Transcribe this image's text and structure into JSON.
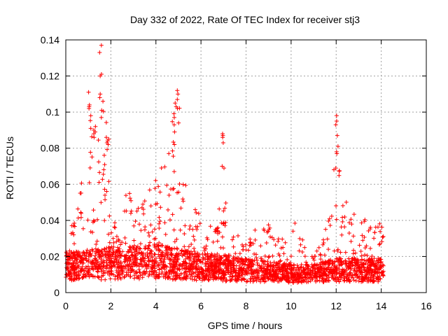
{
  "chart_data": {
    "type": "scatter",
    "title": "Day 332 of 2022, Rate Of TEC Index for receiver stj3",
    "xlabel": "GPS time / hours",
    "ylabel": "ROTI / TECUs",
    "xlim": [
      0,
      16
    ],
    "ylim": [
      0,
      0.14
    ],
    "xticks": [
      0,
      2,
      4,
      6,
      8,
      10,
      12,
      14,
      16
    ],
    "xtick_labels": [
      "0",
      "2",
      "4",
      "6",
      "8",
      "10",
      "12",
      "14",
      "16"
    ],
    "yticks": [
      0,
      0.02,
      0.04,
      0.06,
      0.08,
      0.1,
      0.12,
      0.14
    ],
    "ytick_labels": [
      "0",
      "0.02",
      "0.04",
      "0.06",
      "0.08",
      "0.1",
      "0.12",
      "0.14"
    ],
    "grid": true,
    "marker": "+",
    "color": "#ff0000",
    "data_range_hours": [
      0,
      14.1
    ],
    "envelope": [
      [
        0.0,
        0.032
      ],
      [
        0.3,
        0.038
      ],
      [
        0.6,
        0.06
      ],
      [
        0.9,
        0.07
      ],
      [
        1.1,
        0.111
      ],
      [
        1.3,
        0.095
      ],
      [
        1.5,
        0.137
      ],
      [
        1.7,
        0.11
      ],
      [
        1.9,
        0.086
      ],
      [
        2.1,
        0.05
      ],
      [
        2.4,
        0.04
      ],
      [
        2.8,
        0.063
      ],
      [
        3.2,
        0.048
      ],
      [
        3.5,
        0.052
      ],
      [
        3.8,
        0.06
      ],
      [
        4.2,
        0.072
      ],
      [
        4.6,
        0.08
      ],
      [
        4.8,
        0.105
      ],
      [
        5.0,
        0.112
      ],
      [
        5.3,
        0.065
      ],
      [
        5.7,
        0.052
      ],
      [
        6.0,
        0.04
      ],
      [
        6.4,
        0.037
      ],
      [
        6.8,
        0.05
      ],
      [
        7.0,
        0.088
      ],
      [
        7.2,
        0.04
      ],
      [
        7.6,
        0.035
      ],
      [
        8.0,
        0.03
      ],
      [
        8.5,
        0.036
      ],
      [
        8.9,
        0.04
      ],
      [
        9.3,
        0.034
      ],
      [
        9.7,
        0.035
      ],
      [
        10.0,
        0.03
      ],
      [
        10.2,
        0.047
      ],
      [
        10.5,
        0.03
      ],
      [
        10.9,
        0.024
      ],
      [
        11.3,
        0.027
      ],
      [
        11.6,
        0.04
      ],
      [
        11.8,
        0.059
      ],
      [
        12.0,
        0.098
      ],
      [
        12.2,
        0.06
      ],
      [
        12.5,
        0.055
      ],
      [
        12.8,
        0.05
      ],
      [
        13.2,
        0.042
      ],
      [
        13.6,
        0.035
      ],
      [
        13.9,
        0.04
      ],
      [
        14.1,
        0.038
      ]
    ],
    "baseline": [
      [
        0.0,
        0.012
      ],
      [
        2.0,
        0.014
      ],
      [
        4.0,
        0.015
      ],
      [
        6.0,
        0.012
      ],
      [
        8.0,
        0.01
      ],
      [
        10.0,
        0.008
      ],
      [
        11.0,
        0.008
      ],
      [
        12.0,
        0.01
      ],
      [
        14.1,
        0.01
      ]
    ],
    "peaks": [
      {
        "x": 1.05,
        "values": [
          0.111,
          0.104,
          0.103,
          0.102,
          0.098,
          0.091
        ]
      },
      {
        "x": 1.3,
        "values": [
          0.092,
          0.09,
          0.089,
          0.088,
          0.086
        ]
      },
      {
        "x": 1.55,
        "values": [
          0.137,
          0.133,
          0.121,
          0.12,
          0.11,
          0.108,
          0.101,
          0.097
        ]
      },
      {
        "x": 1.85,
        "values": [
          0.086,
          0.085,
          0.084,
          0.083,
          0.082
        ]
      },
      {
        "x": 4.85,
        "values": [
          0.105,
          0.103,
          0.097,
          0.093,
          0.089,
          0.082
        ]
      },
      {
        "x": 5.0,
        "values": [
          0.112,
          0.11,
          0.107,
          0.102,
          0.094
        ]
      },
      {
        "x": 6.98,
        "values": [
          0.088,
          0.087,
          0.086,
          0.083,
          0.07,
          0.069
        ]
      },
      {
        "x": 12.0,
        "values": [
          0.098,
          0.095,
          0.093,
          0.087,
          0.078,
          0.077,
          0.069
        ]
      }
    ]
  }
}
